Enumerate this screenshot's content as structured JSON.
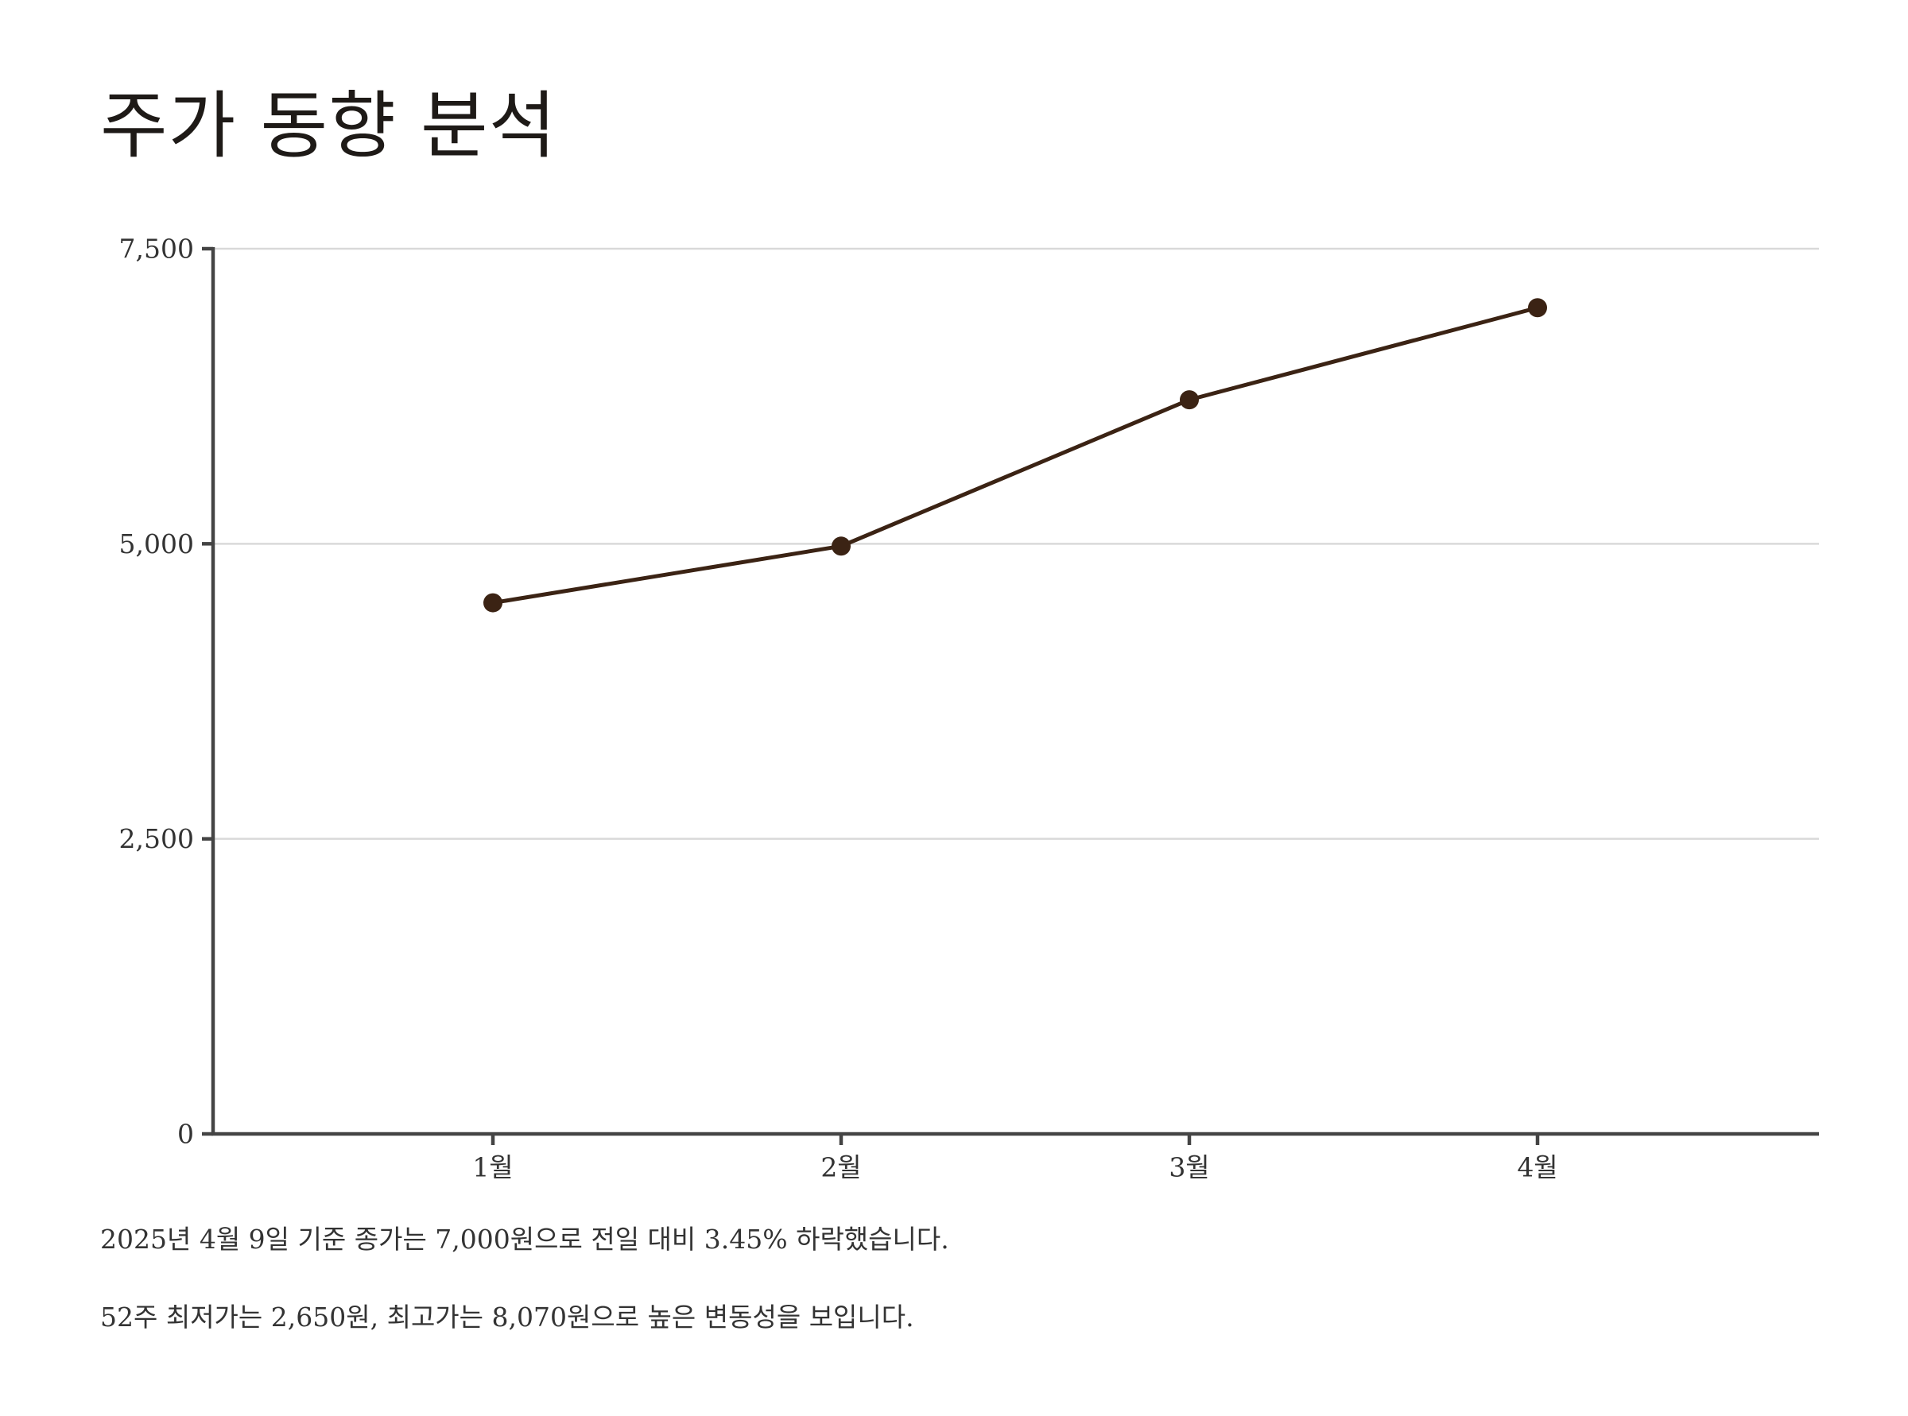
{
  "title": "주가 동향 분석",
  "colors": {
    "line": "#3b2314",
    "axis": "#444444",
    "grid": "#d9d9d9",
    "tick_text": "#333333"
  },
  "notes": [
    "2025년 4월 9일 기준 종가는 7,000원으로 전일 대비 3.45% 하락했습니다.",
    "52주 최저가는 2,650원, 최고가는 8,070원으로 높은 변동성을 보입니다."
  ],
  "chart_data": {
    "type": "line",
    "title": "",
    "xlabel": "",
    "ylabel": "",
    "categories": [
      "1월",
      "2월",
      "3월",
      "4월"
    ],
    "values": [
      4500,
      4980,
      6220,
      7000
    ],
    "ylim": [
      0,
      7500
    ],
    "yticks": [
      0,
      2500,
      5000,
      7500
    ],
    "ytick_labels": [
      "0",
      "2,500",
      "5,000",
      "7,500"
    ],
    "grid": true,
    "legend": "none",
    "markers": true
  }
}
